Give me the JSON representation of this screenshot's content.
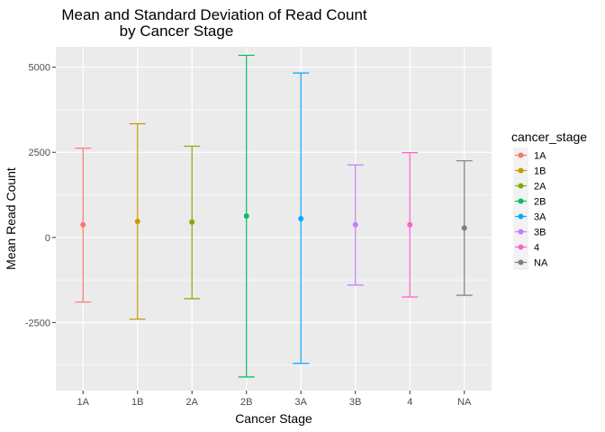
{
  "chart_data": {
    "type": "errorbar",
    "title_lines": [
      "Mean and Standard Deviation of Read Count",
      "by Cancer Stage"
    ],
    "xlabel": "Cancer Stage",
    "ylabel": "Mean Read Count",
    "categories": [
      "1A",
      "1B",
      "2A",
      "2B",
      "3A",
      "3B",
      "4",
      "NA"
    ],
    "means": [
      370,
      470,
      450,
      630,
      550,
      370,
      370,
      280
    ],
    "lower": [
      -1900,
      -2400,
      -1800,
      -4100,
      -3700,
      -1400,
      -1750,
      -1700
    ],
    "upper": [
      2620,
      3340,
      2680,
      5350,
      4830,
      2130,
      2490,
      2250
    ],
    "y_ticks": [
      -2500,
      0,
      2500,
      5000
    ],
    "y_tick_labels": [
      "-2500",
      "0",
      "2500",
      "5000"
    ],
    "ylim": [
      -4500,
      5600
    ],
    "grid": true,
    "legend": {
      "title": "cancer_stage",
      "position": "right",
      "labels": [
        "1A",
        "1B",
        "2A",
        "2B",
        "3A",
        "3B",
        "4",
        "NA"
      ]
    },
    "colors": [
      "#F8766D",
      "#CD9600",
      "#7CAE00",
      "#00BE67",
      "#00A9FF",
      "#C77CFF",
      "#FF61CC",
      "#7F7F7F"
    ],
    "panel_background": "#EBEBEB",
    "grid_color": "#FFFFFF"
  }
}
